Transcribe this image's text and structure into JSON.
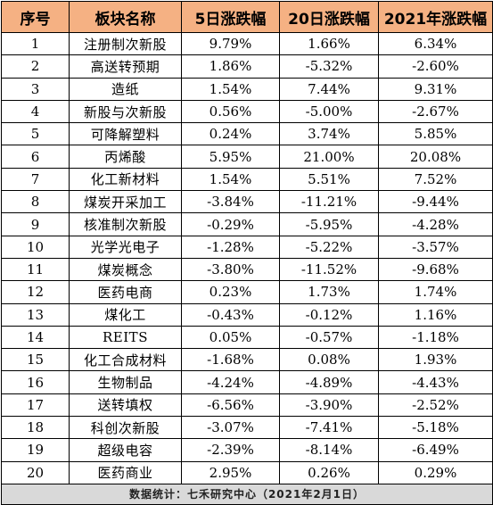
{
  "headers": [
    "序号",
    "板块名称",
    "5日涨跌幅",
    "20日涨跌幅",
    "2021年涨跌幅"
  ],
  "rows": [
    [
      "1",
      "注册制次新股",
      "9.79%",
      "1.66%",
      "6.34%"
    ],
    [
      "2",
      "高送转预期",
      "1.86%",
      "-5.32%",
      "-2.60%"
    ],
    [
      "3",
      "造纸",
      "1.54%",
      "7.44%",
      "9.31%"
    ],
    [
      "4",
      "新股与次新股",
      "0.56%",
      "-5.00%",
      "-2.67%"
    ],
    [
      "5",
      "可降解塑料",
      "0.24%",
      "3.74%",
      "5.85%"
    ],
    [
      "6",
      "丙烯酸",
      "5.95%",
      "21.00%",
      "20.08%"
    ],
    [
      "7",
      "化工新材料",
      "1.54%",
      "5.51%",
      "7.52%"
    ],
    [
      "8",
      "煤炭开采加工",
      "-3.84%",
      "-11.21%",
      "-9.44%"
    ],
    [
      "9",
      "核准制次新股",
      "-0.29%",
      "-5.95%",
      "-4.28%"
    ],
    [
      "10",
      "光学光电子",
      "-1.28%",
      "-5.22%",
      "-3.57%"
    ],
    [
      "11",
      "煤炭概念",
      "-3.80%",
      "-11.52%",
      "-9.68%"
    ],
    [
      "12",
      "医药电商",
      "0.23%",
      "1.73%",
      "1.74%"
    ],
    [
      "13",
      "煤化工",
      "-0.43%",
      "-0.12%",
      "1.16%"
    ],
    [
      "14",
      "REITS",
      "0.05%",
      "-0.57%",
      "-1.18%"
    ],
    [
      "15",
      "化工合成材料",
      "-1.68%",
      "0.08%",
      "1.93%"
    ],
    [
      "16",
      "生物制品",
      "-4.24%",
      "-4.89%",
      "-4.43%"
    ],
    [
      "17",
      "送转填权",
      "-6.56%",
      "-3.90%",
      "-2.52%"
    ],
    [
      "18",
      "科创次新股",
      "-3.07%",
      "-7.41%",
      "-5.18%"
    ],
    [
      "19",
      "超级电容",
      "-2.39%",
      "-8.14%",
      "-6.49%"
    ],
    [
      "20",
      "医药商业",
      "2.95%",
      "0.26%",
      "0.29%"
    ]
  ],
  "footer": "数据统计：七禾研究中心（2021年2月1日）",
  "colors": {
    "header_bg": "#f5b183",
    "footer_bg": "#d9d9d9",
    "grid": "#000000"
  }
}
